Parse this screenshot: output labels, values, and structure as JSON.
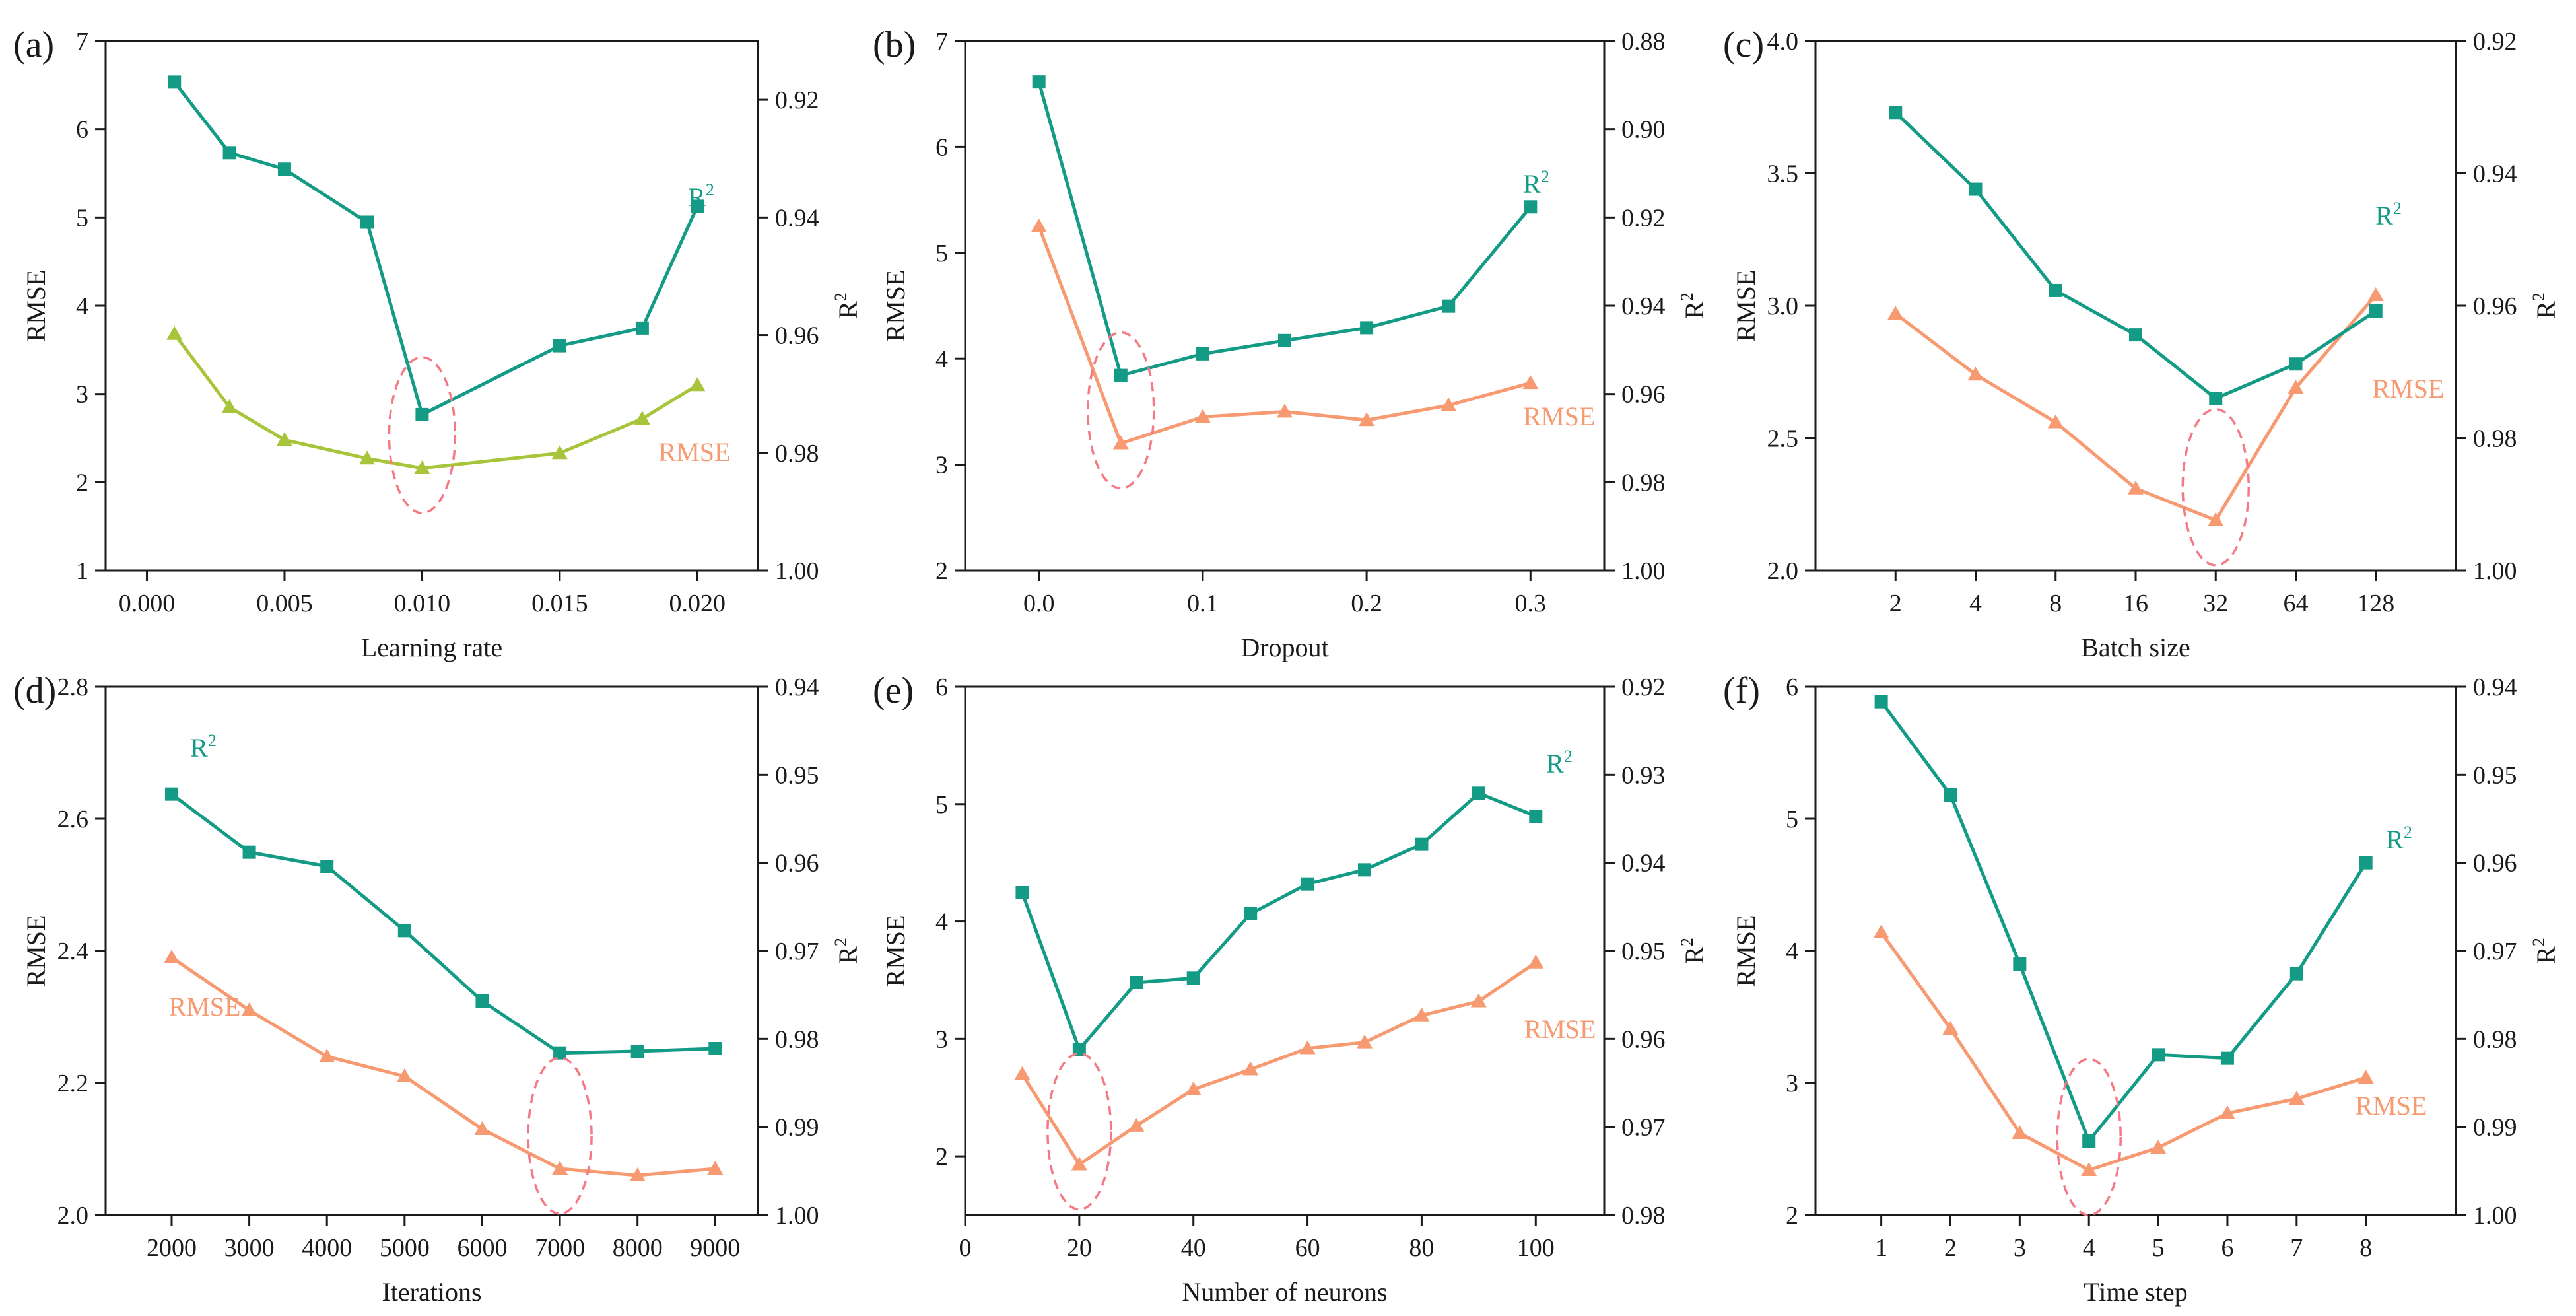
{
  "colors": {
    "r2": "#139b86",
    "rmse": "#f79a72",
    "rmse_a": "#a8c43a",
    "highlight": "#f47a86",
    "axis": "#1a1a1a"
  },
  "chart_data": [
    {
      "id": "a",
      "panel_label": "(a)",
      "type": "line",
      "xscale": "linear",
      "xlabel": "Learning rate",
      "ylabel": "RMSE",
      "y2label": "R",
      "xlim": [
        -0.0015,
        0.0222
      ],
      "xticks": [
        0.0,
        0.005,
        0.01,
        0.015,
        0.02
      ],
      "xtick_labels": [
        "0.000",
        "0.005",
        "0.010",
        "0.015",
        "0.020"
      ],
      "ylim": [
        1,
        7
      ],
      "yticks": [
        1,
        2,
        3,
        4,
        5,
        6,
        7
      ],
      "ytick_labels": [
        "1",
        "2",
        "3",
        "4",
        "5",
        "6",
        "7"
      ],
      "y2lim": [
        1.0,
        0.91
      ],
      "y2ticks": [
        1.0,
        0.98,
        0.96,
        0.94,
        0.92
      ],
      "y2tick_labels": [
        "1.00",
        "0.98",
        "0.96",
        "0.94",
        "0.92"
      ],
      "series": [
        {
          "name": "RMSE",
          "label": "RMSE",
          "axis": "left",
          "marker": "triangle",
          "color_key": "rmse_a",
          "x": [
            0.001,
            0.003,
            0.005,
            0.008,
            0.01,
            0.015,
            0.018,
            0.02
          ],
          "y": [
            3.68,
            2.85,
            2.48,
            2.27,
            2.16,
            2.33,
            2.72,
            3.1
          ]
        },
        {
          "name": "R2",
          "label": "R",
          "axis": "right",
          "marker": "square",
          "color_key": "r2",
          "x": [
            0.001,
            0.003,
            0.005,
            0.008,
            0.01,
            0.015,
            0.018,
            0.02
          ],
          "y": [
            0.917,
            0.929,
            0.9318,
            0.9408,
            0.9735,
            0.9618,
            0.9588,
            0.9381
          ]
        }
      ],
      "highlight_x": 0.01
    },
    {
      "id": "b",
      "panel_label": "(b)",
      "type": "line",
      "xscale": "linear",
      "xlabel": "Dropout",
      "ylabel": "RMSE",
      "y2label": "R",
      "xlim": [
        -0.045,
        0.345
      ],
      "xticks": [
        0.0,
        0.1,
        0.2,
        0.3
      ],
      "xtick_labels": [
        "0.0",
        "0.1",
        "0.2",
        "0.3"
      ],
      "ylim": [
        2,
        7
      ],
      "yticks": [
        2,
        3,
        4,
        5,
        6,
        7
      ],
      "ytick_labels": [
        "2",
        "3",
        "4",
        "5",
        "6",
        "7"
      ],
      "y2lim": [
        1.0,
        0.88
      ],
      "y2ticks": [
        1.0,
        0.98,
        0.96,
        0.94,
        0.92,
        0.9,
        0.88
      ],
      "y2tick_labels": [
        "1.00",
        "0.98",
        "0.96",
        "0.94",
        "0.92",
        "0.90",
        "0.88"
      ],
      "series": [
        {
          "name": "RMSE",
          "label": "RMSE",
          "axis": "left",
          "marker": "triangle",
          "color_key": "rmse",
          "x": [
            0.0,
            0.05,
            0.1,
            0.15,
            0.2,
            0.25,
            0.3
          ],
          "y": [
            5.25,
            3.2,
            3.45,
            3.5,
            3.42,
            3.56,
            3.77
          ]
        },
        {
          "name": "R2",
          "label": "R",
          "axis": "right",
          "marker": "square",
          "color_key": "r2",
          "x": [
            0.0,
            0.05,
            0.1,
            0.15,
            0.2,
            0.25,
            0.3
          ],
          "y": [
            0.8893,
            0.9558,
            0.9509,
            0.9479,
            0.945,
            0.9401,
            0.9176
          ]
        }
      ],
      "highlight_x": 0.05
    },
    {
      "id": "c",
      "panel_label": "(c)",
      "type": "line",
      "xscale": "log2",
      "xlabel": "Batch size",
      "ylabel": "RMSE",
      "y2label": "R",
      "xlim": [
        0.0,
        8.0
      ],
      "xticks": [
        1,
        2,
        3,
        4,
        5,
        6,
        7
      ],
      "xtick_labels": [
        "2",
        "4",
        "8",
        "16",
        "32",
        "64",
        "128"
      ],
      "ylim": [
        2.0,
        4.0
      ],
      "yticks": [
        2.0,
        2.5,
        3.0,
        3.5,
        4.0
      ],
      "ytick_labels": [
        "2.0",
        "2.5",
        "3.0",
        "3.5",
        "4.0"
      ],
      "y2lim": [
        1.0,
        0.92
      ],
      "y2ticks": [
        1.0,
        0.98,
        0.96,
        0.94,
        0.92
      ],
      "y2tick_labels": [
        "1.00",
        "0.98",
        "0.96",
        "0.94",
        "0.92"
      ],
      "series": [
        {
          "name": "RMSE",
          "label": "RMSE",
          "axis": "left",
          "marker": "triangle",
          "color_key": "rmse",
          "x": [
            1,
            2,
            3,
            4,
            5,
            6,
            7
          ],
          "y": [
            2.97,
            2.74,
            2.56,
            2.31,
            2.19,
            2.69,
            3.04
          ]
        },
        {
          "name": "R2",
          "label": "R",
          "axis": "right",
          "marker": "square",
          "color_key": "r2",
          "x": [
            1,
            2,
            3,
            4,
            5,
            6,
            7
          ],
          "y": [
            0.9308,
            0.9424,
            0.9577,
            0.9644,
            0.974,
            0.9688,
            0.9608
          ]
        }
      ],
      "highlight_x": 5
    },
    {
      "id": "d",
      "panel_label": "(d)",
      "type": "line",
      "xscale": "linear",
      "xlabel": "Iterations",
      "ylabel": "RMSE",
      "y2label": "R",
      "xlim": [
        1150,
        9550
      ],
      "xticks": [
        2000,
        3000,
        4000,
        5000,
        6000,
        7000,
        8000,
        9000
      ],
      "xtick_labels": [
        "2000",
        "3000",
        "4000",
        "5000",
        "6000",
        "7000",
        "8000",
        "9000"
      ],
      "ylim": [
        2.0,
        2.8
      ],
      "yticks": [
        2.0,
        2.2,
        2.4,
        2.6,
        2.8
      ],
      "ytick_labels": [
        "2.0",
        "2.2",
        "2.4",
        "2.6",
        "2.8"
      ],
      "y2lim": [
        1.0,
        0.94
      ],
      "y2ticks": [
        1.0,
        0.99,
        0.98,
        0.97,
        0.96,
        0.95,
        0.94
      ],
      "y2tick_labels": [
        "1.00",
        "0.99",
        "0.98",
        "0.97",
        "0.96",
        "0.95",
        "0.94"
      ],
      "series": [
        {
          "name": "RMSE",
          "label": "RMSE",
          "axis": "left",
          "marker": "triangle",
          "color_key": "rmse",
          "x": [
            2000,
            3000,
            4000,
            5000,
            6000,
            7000,
            8000,
            9000
          ],
          "y": [
            2.39,
            2.31,
            2.24,
            2.21,
            2.13,
            2.07,
            2.06,
            2.07
          ]
        },
        {
          "name": "R2",
          "label": "R",
          "axis": "right",
          "marker": "square",
          "color_key": "r2",
          "x": [
            2000,
            3000,
            4000,
            5000,
            6000,
            7000,
            8000,
            9000
          ],
          "y": [
            0.9522,
            0.9588,
            0.9604,
            0.9677,
            0.9757,
            0.9816,
            0.9814,
            0.9811
          ]
        }
      ],
      "highlight_x": 7000
    },
    {
      "id": "e",
      "panel_label": "(e)",
      "type": "line",
      "xscale": "linear",
      "xlabel": "Number of neurons",
      "ylabel": "RMSE",
      "y2label": "R",
      "xlim": [
        0,
        112
      ],
      "xticks": [
        0,
        20,
        40,
        60,
        80,
        100
      ],
      "xtick_labels": [
        "0",
        "20",
        "40",
        "60",
        "80",
        "100"
      ],
      "ylim": [
        1.5,
        6
      ],
      "yticks": [
        2,
        3,
        4,
        5,
        6
      ],
      "ytick_labels": [
        "2",
        "3",
        "4",
        "5",
        "6"
      ],
      "y2lim": [
        0.98,
        0.92
      ],
      "y2ticks": [
        0.98,
        0.97,
        0.96,
        0.95,
        0.94,
        0.93,
        0.92
      ],
      "y2tick_labels": [
        "0.98",
        "0.97",
        "0.96",
        "0.95",
        "0.94",
        "0.93",
        "0.92"
      ],
      "series": [
        {
          "name": "RMSE",
          "label": "RMSE",
          "axis": "left",
          "marker": "triangle",
          "color_key": "rmse",
          "x": [
            10,
            20,
            30,
            40,
            50,
            60,
            70,
            80,
            90,
            100
          ],
          "y": [
            2.7,
            1.93,
            2.26,
            2.57,
            2.74,
            2.92,
            2.97,
            3.2,
            3.32,
            3.65
          ]
        },
        {
          "name": "R2",
          "label": "R",
          "axis": "right",
          "marker": "square",
          "color_key": "r2",
          "x": [
            10,
            20,
            30,
            40,
            50,
            60,
            70,
            80,
            90,
            100
          ],
          "y": [
            0.9434,
            0.9612,
            0.9536,
            0.9531,
            0.9458,
            0.9424,
            0.9408,
            0.9379,
            0.9321,
            0.9347
          ]
        }
      ],
      "highlight_x": 20
    },
    {
      "id": "f",
      "panel_label": "(f)",
      "type": "line",
      "xscale": "linear",
      "xlabel": "Time step",
      "ylabel": "RMSE",
      "y2label": "R",
      "xlim": [
        0.05,
        9.3
      ],
      "xticks": [
        1,
        2,
        3,
        4,
        5,
        6,
        7,
        8
      ],
      "xtick_labels": [
        "1",
        "2",
        "3",
        "4",
        "5",
        "6",
        "7",
        "8"
      ],
      "ylim": [
        2,
        6
      ],
      "yticks": [
        2,
        3,
        4,
        5,
        6
      ],
      "ytick_labels": [
        "2",
        "3",
        "4",
        "5",
        "6"
      ],
      "y2lim": [
        1.0,
        0.94
      ],
      "y2ticks": [
        1.0,
        0.99,
        0.98,
        0.97,
        0.96,
        0.95,
        0.94
      ],
      "y2tick_labels": [
        "1.00",
        "0.99",
        "0.98",
        "0.97",
        "0.96",
        "0.95",
        "0.94"
      ],
      "series": [
        {
          "name": "RMSE",
          "label": "RMSE",
          "axis": "left",
          "marker": "triangle",
          "color_key": "rmse",
          "x": [
            1,
            2,
            3,
            4,
            5,
            6,
            7,
            8
          ],
          "y": [
            4.14,
            3.41,
            2.62,
            2.34,
            2.51,
            2.77,
            2.88,
            3.04
          ]
        },
        {
          "name": "R2",
          "label": "R",
          "axis": "right",
          "marker": "square",
          "color_key": "r2",
          "x": [
            1,
            2,
            3,
            4,
            5,
            6,
            7,
            8
          ],
          "y": [
            0.9417,
            0.9523,
            0.9715,
            0.9916,
            0.9818,
            0.9822,
            0.9726,
            0.96
          ]
        }
      ],
      "highlight_x": 4
    }
  ]
}
